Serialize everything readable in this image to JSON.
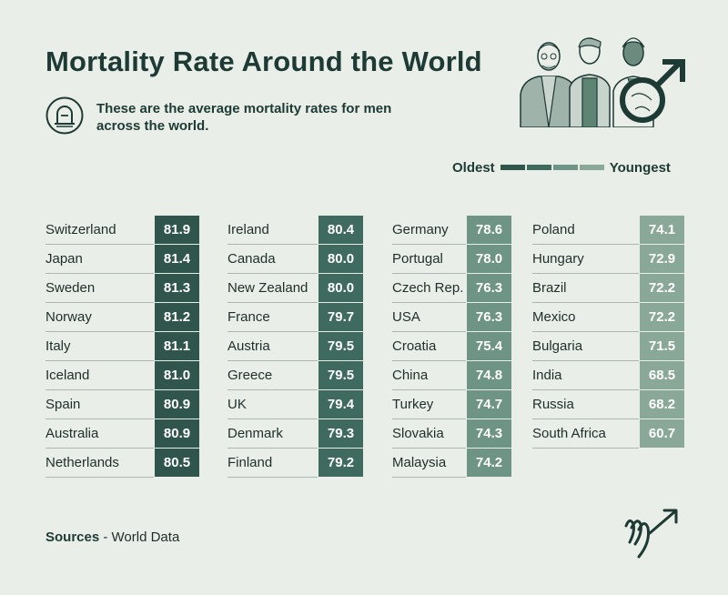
{
  "header": {
    "title": "Mortality Rate Around the World",
    "subtitle": "These are the average mortality rates for men across the world."
  },
  "legend": {
    "left_label": "Oldest",
    "right_label": "Youngest",
    "colors": [
      "#2f554d",
      "#3f6a5f",
      "#6d9484",
      "#8aa898"
    ]
  },
  "icons": {
    "subtitle_icon": "gravestone-icon",
    "illustration": "three-men-with-male-symbol-illustration",
    "logo": "brand-logo-icon"
  },
  "chart_data": {
    "type": "table",
    "title": "Mortality Rate Around the World",
    "columns": [
      {
        "color": "#2f554d",
        "rows": [
          {
            "country": "Switzerland",
            "value": "81.9"
          },
          {
            "country": "Japan",
            "value": "81.4"
          },
          {
            "country": "Sweden",
            "value": "81.3"
          },
          {
            "country": "Norway",
            "value": "81.2"
          },
          {
            "country": "Italy",
            "value": "81.1"
          },
          {
            "country": "Iceland",
            "value": "81.0"
          },
          {
            "country": "Spain",
            "value": "80.9"
          },
          {
            "country": "Australia",
            "value": "80.9"
          },
          {
            "country": "Netherlands",
            "value": "80.5"
          }
        ]
      },
      {
        "color": "#3f6a5f",
        "rows": [
          {
            "country": "Ireland",
            "value": "80.4"
          },
          {
            "country": "Canada",
            "value": "80.0"
          },
          {
            "country": "New Zealand",
            "value": "80.0"
          },
          {
            "country": "France",
            "value": "79.7"
          },
          {
            "country": "Austria",
            "value": "79.5"
          },
          {
            "country": "Greece",
            "value": "79.5"
          },
          {
            "country": "UK",
            "value": "79.4"
          },
          {
            "country": "Denmark",
            "value": "79.3"
          },
          {
            "country": "Finland",
            "value": "79.2"
          }
        ]
      },
      {
        "color": "#6d9484",
        "rows": [
          {
            "country": "Germany",
            "value": "78.6"
          },
          {
            "country": "Portugal",
            "value": "78.0"
          },
          {
            "country": "Czech Rep.",
            "value": "76.3"
          },
          {
            "country": "USA",
            "value": "76.3"
          },
          {
            "country": "Croatia",
            "value": "75.4"
          },
          {
            "country": "China",
            "value": "74.8"
          },
          {
            "country": "Turkey",
            "value": "74.7"
          },
          {
            "country": "Slovakia",
            "value": "74.3"
          },
          {
            "country": "Malaysia",
            "value": "74.2"
          }
        ]
      },
      {
        "color": "#8aa898",
        "rows": [
          {
            "country": "Poland",
            "value": "74.1"
          },
          {
            "country": "Hungary",
            "value": "72.9"
          },
          {
            "country": "Brazil",
            "value": "72.2"
          },
          {
            "country": "Mexico",
            "value": "72.2"
          },
          {
            "country": "Bulgaria",
            "value": "71.5"
          },
          {
            "country": "India",
            "value": "68.5"
          },
          {
            "country": "Russia",
            "value": "68.2"
          },
          {
            "country": "South Africa",
            "value": "60.7"
          }
        ]
      }
    ]
  },
  "footer": {
    "sources_label": "Sources",
    "sources_text": " - World Data"
  }
}
